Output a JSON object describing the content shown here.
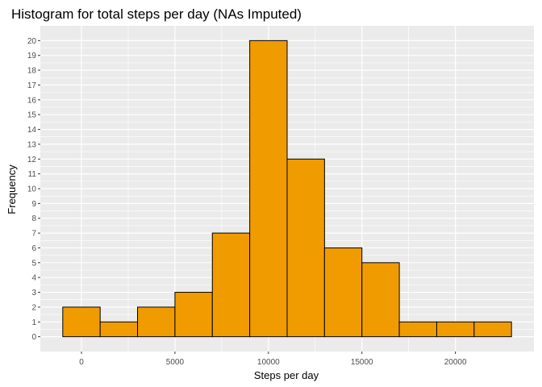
{
  "chart_data": {
    "type": "bar",
    "title": "Histogram for total steps per day (NAs Imputed)",
    "xlabel": "Steps per day",
    "ylabel": "Frequency",
    "bin_width": 2000,
    "bins": [
      {
        "x0": -1000,
        "x1": 1000,
        "count": 2
      },
      {
        "x0": 1000,
        "x1": 3000,
        "count": 1
      },
      {
        "x0": 3000,
        "x1": 5000,
        "count": 2
      },
      {
        "x0": 5000,
        "x1": 7000,
        "count": 3
      },
      {
        "x0": 7000,
        "x1": 9000,
        "count": 7
      },
      {
        "x0": 9000,
        "x1": 11000,
        "count": 20
      },
      {
        "x0": 11000,
        "x1": 13000,
        "count": 12
      },
      {
        "x0": 13000,
        "x1": 15000,
        "count": 6
      },
      {
        "x0": 15000,
        "x1": 17000,
        "count": 5
      },
      {
        "x0": 17000,
        "x1": 19000,
        "count": 1
      },
      {
        "x0": 19000,
        "x1": 21000,
        "count": 1
      },
      {
        "x0": 21000,
        "x1": 23000,
        "count": 1
      }
    ],
    "xlim": [
      -2200,
      24200
    ],
    "ylim": [
      -1,
      21
    ],
    "x_ticks": [
      0,
      5000,
      10000,
      15000,
      20000
    ],
    "x_tick_labels": [
      "0",
      "5000",
      "10000",
      "15000",
      "20000"
    ],
    "y_ticks": [
      0,
      1,
      2,
      3,
      4,
      5,
      6,
      7,
      8,
      9,
      10,
      11,
      12,
      13,
      14,
      15,
      16,
      17,
      18,
      19,
      20
    ],
    "y_tick_labels": [
      "0",
      "1",
      "2",
      "3",
      "4",
      "5",
      "6",
      "7",
      "8",
      "9",
      "10",
      "11",
      "12",
      "13",
      "14",
      "15",
      "16",
      "17",
      "18",
      "19",
      "20"
    ],
    "grid": true,
    "legend": "none",
    "colors": {
      "panel_background": "#ebebeb",
      "grid_major": "#ffffff",
      "bar_fill": "#f09b00",
      "bar_outline": "#000000",
      "tick_text": "#4d4d4d",
      "tick_mark": "#333333"
    }
  }
}
